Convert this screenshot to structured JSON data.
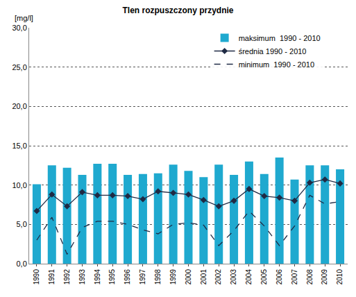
{
  "chart_data": {
    "type": "bar",
    "title": "Tlen rozpuszczony przydnie",
    "y_label": "[mg/l]",
    "categories": [
      "1990",
      "1991",
      "1992",
      "1993",
      "1994",
      "1995",
      "1996",
      "1997",
      "1998",
      "1999",
      "2000",
      "2001",
      "2002",
      "2003",
      "2004",
      "2005",
      "2006",
      "2007",
      "2008",
      "2009",
      "2010"
    ],
    "series": [
      {
        "name": "maksimum  1990 - 2010",
        "type": "bar",
        "color": "#1fa9cf",
        "values": [
          10.1,
          12.5,
          12.2,
          11.3,
          12.7,
          12.7,
          11.3,
          11.4,
          11.5,
          12.6,
          11.8,
          11.0,
          12.6,
          11.3,
          13.0,
          11.4,
          13.5,
          10.7,
          12.5,
          12.5,
          12.0
        ]
      },
      {
        "name": "średnia 1990 - 2010",
        "type": "line",
        "color": "#1f2a44",
        "marker": "diamond",
        "line_style": "solid",
        "values": [
          6.7,
          8.8,
          7.3,
          9.1,
          8.7,
          8.7,
          8.6,
          8.2,
          9.2,
          9.0,
          8.8,
          8.1,
          7.3,
          8.0,
          9.5,
          8.6,
          8.4,
          8.0,
          10.3,
          10.7,
          10.2
        ]
      },
      {
        "name": "minimum  1990 - 2010",
        "type": "line",
        "color": "#1f2a44",
        "line_style": "dash",
        "values": [
          3.0,
          5.9,
          1.2,
          4.6,
          5.4,
          5.4,
          5.0,
          4.3,
          3.8,
          5.0,
          5.2,
          4.9,
          2.3,
          4.2,
          6.7,
          4.8,
          2.3,
          4.8,
          8.7,
          7.6,
          7.9
        ]
      }
    ],
    "ylim": [
      0,
      30
    ],
    "yticks": [
      {
        "value": 0,
        "label": "0,0"
      },
      {
        "value": 5,
        "label": "5,0"
      },
      {
        "value": 10,
        "label": "10,0"
      },
      {
        "value": 15,
        "label": "15,0"
      },
      {
        "value": 20,
        "label": "20,0"
      },
      {
        "value": 25,
        "label": "25,0"
      },
      {
        "value": 30,
        "label": "30,0"
      }
    ],
    "grid": true,
    "legend": "top-right"
  }
}
